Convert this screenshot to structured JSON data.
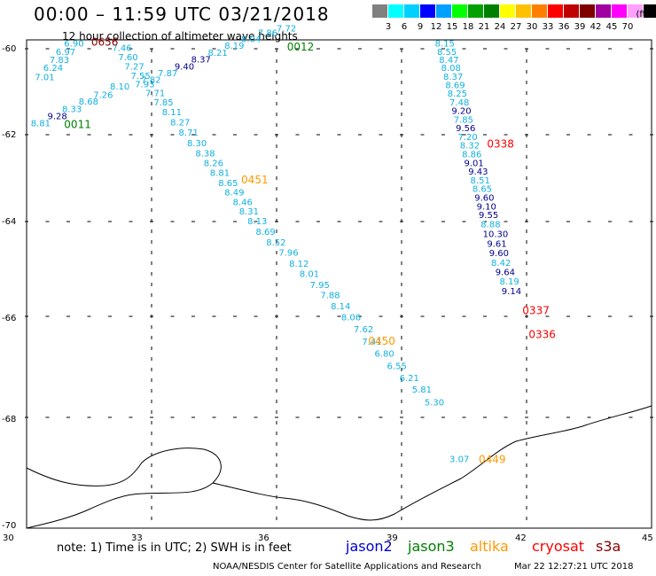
{
  "header": {
    "title": "00:00 – 11:59 UTC 03/21/2018",
    "subtitle": "12 hour collection of altimeter wave heights"
  },
  "legend": {
    "unit": "(ft)",
    "colors": [
      "#808080",
      "#00ffff",
      "#00d0ff",
      "#0000ff",
      "#00a0ff",
      "#00ff00",
      "#00a000",
      "#008000",
      "#ffff00",
      "#ffc000",
      "#ff8000",
      "#ff0000",
      "#c00000",
      "#800000",
      "#a000a0",
      "#ff00ff",
      "#ffa0ff",
      "#000000"
    ],
    "labels": [
      "3",
      "6",
      "9",
      "12",
      "15",
      "18",
      "21",
      "24",
      "27",
      "30",
      "33",
      "36",
      "39",
      "42",
      "45",
      "70"
    ]
  },
  "map": {
    "lat_ticks": [
      "-60",
      "-62",
      "-64",
      "-66",
      "-68",
      "-70"
    ],
    "lon_ticks": [
      "30",
      "33",
      "36",
      "39",
      "42",
      "45"
    ],
    "colors": {
      "cyan": "#10b0e0",
      "navy": "#00008b",
      "orange": "#ff9900",
      "green": "#008000",
      "red": "#ff0000",
      "maroon": "#8b0000"
    },
    "track_labels": [
      {
        "text": "0656",
        "color": "maroon",
        "lon": 31.55,
        "lat": -59.93
      },
      {
        "text": "0012",
        "color": "green",
        "lon": 36.25,
        "lat": -60.04
      },
      {
        "text": "0011",
        "color": "green",
        "lon": 30.9,
        "lat": -61.85
      },
      {
        "text": "0451",
        "color": "orange",
        "lon": 35.15,
        "lat": -63.12
      },
      {
        "text": "0338",
        "color": "red",
        "lon": 41.05,
        "lat": -62.3
      },
      {
        "text": "0450",
        "color": "orange",
        "lon": 38.2,
        "lat": -66.56
      },
      {
        "text": "0337",
        "color": "red",
        "lon": 41.9,
        "lat": -65.95
      },
      {
        "text": "0336",
        "color": "red",
        "lon": 42.05,
        "lat": -66.43
      },
      {
        "text": "0449",
        "color": "orange",
        "lon": 40.85,
        "lat": -68.86
      }
    ],
    "wave_values": [
      {
        "v": "6.90",
        "c": "cyan",
        "lon": 30.9,
        "lat": -59.95
      },
      {
        "v": "6.97",
        "c": "cyan",
        "lon": 30.7,
        "lat": -60.14
      },
      {
        "v": "7.83",
        "c": "cyan",
        "lon": 30.55,
        "lat": -60.33
      },
      {
        "v": "6.24",
        "c": "cyan",
        "lon": 30.4,
        "lat": -60.52
      },
      {
        "v": "7.01",
        "c": "cyan",
        "lon": 30.2,
        "lat": -60.73
      },
      {
        "v": "7.46",
        "c": "cyan",
        "lon": 32.05,
        "lat": -60.05
      },
      {
        "v": "7.60",
        "c": "cyan",
        "lon": 32.2,
        "lat": -60.27
      },
      {
        "v": "7.27",
        "c": "cyan",
        "lon": 32.35,
        "lat": -60.48
      },
      {
        "v": "7.55",
        "c": "cyan",
        "lon": 32.5,
        "lat": -60.7
      },
      {
        "v": "7.93",
        "c": "cyan",
        "lon": 32.6,
        "lat": -60.9
      },
      {
        "v": "7.71",
        "c": "cyan",
        "lon": 32.85,
        "lat": -61.1
      },
      {
        "v": "7.85",
        "c": "cyan",
        "lon": 33.05,
        "lat": -61.32
      },
      {
        "v": "8.11",
        "c": "cyan",
        "lon": 33.25,
        "lat": -61.55
      },
      {
        "v": "8.27",
        "c": "cyan",
        "lon": 33.45,
        "lat": -61.78
      },
      {
        "v": "8.71",
        "c": "cyan",
        "lon": 33.65,
        "lat": -62.02
      },
      {
        "v": "8.30",
        "c": "cyan",
        "lon": 33.85,
        "lat": -62.27
      },
      {
        "v": "8.38",
        "c": "cyan",
        "lon": 34.05,
        "lat": -62.5
      },
      {
        "v": "8.26",
        "c": "cyan",
        "lon": 34.25,
        "lat": -62.72
      },
      {
        "v": "8.81",
        "c": "cyan",
        "lon": 34.4,
        "lat": -62.95
      },
      {
        "v": "8.65",
        "c": "cyan",
        "lon": 34.6,
        "lat": -63.18
      },
      {
        "v": "8.49",
        "c": "cyan",
        "lon": 34.75,
        "lat": -63.4
      },
      {
        "v": "8.46",
        "c": "cyan",
        "lon": 34.95,
        "lat": -63.62
      },
      {
        "v": "8.31",
        "c": "cyan",
        "lon": 35.1,
        "lat": -63.84
      },
      {
        "v": "8.13",
        "c": "cyan",
        "lon": 35.3,
        "lat": -64.06
      },
      {
        "v": "8.69",
        "c": "cyan",
        "lon": 35.5,
        "lat": -64.28
      },
      {
        "v": "8.52",
        "c": "cyan",
        "lon": 35.75,
        "lat": -64.5
      },
      {
        "v": "7.96",
        "c": "cyan",
        "lon": 36.05,
        "lat": -64.72
      },
      {
        "v": "8.12",
        "c": "cyan",
        "lon": 36.3,
        "lat": -64.95
      },
      {
        "v": "8.01",
        "c": "cyan",
        "lon": 36.55,
        "lat": -65.17
      },
      {
        "v": "7.95",
        "c": "cyan",
        "lon": 36.8,
        "lat": -65.4
      },
      {
        "v": "7.88",
        "c": "cyan",
        "lon": 37.05,
        "lat": -65.62
      },
      {
        "v": "8.14",
        "c": "cyan",
        "lon": 37.3,
        "lat": -65.85
      },
      {
        "v": "8.06",
        "c": "cyan",
        "lon": 37.55,
        "lat": -66.08
      },
      {
        "v": "7.62",
        "c": "cyan",
        "lon": 37.85,
        "lat": -66.32
      },
      {
        "v": "7.41",
        "c": "cyan",
        "lon": 38.05,
        "lat": -66.56
      },
      {
        "v": "6.80",
        "c": "cyan",
        "lon": 38.35,
        "lat": -66.8
      },
      {
        "v": "6.55",
        "c": "cyan",
        "lon": 38.65,
        "lat": -67.04
      },
      {
        "v": "6.21",
        "c": "cyan",
        "lon": 38.95,
        "lat": -67.28
      },
      {
        "v": "5.81",
        "c": "cyan",
        "lon": 39.25,
        "lat": -67.51
      },
      {
        "v": "5.30",
        "c": "cyan",
        "lon": 39.55,
        "lat": -67.76
      },
      {
        "v": "3.07",
        "c": "cyan",
        "lon": 40.15,
        "lat": -68.84
      },
      {
        "v": "8.81",
        "c": "cyan",
        "lon": 30.1,
        "lat": -61.8
      },
      {
        "v": "9.28",
        "c": "navy",
        "lon": 30.5,
        "lat": -61.64
      },
      {
        "v": "8.33",
        "c": "cyan",
        "lon": 30.85,
        "lat": -61.47
      },
      {
        "v": "8.68",
        "c": "cyan",
        "lon": 31.25,
        "lat": -61.3
      },
      {
        "v": "7.26",
        "c": "cyan",
        "lon": 31.6,
        "lat": -61.14
      },
      {
        "v": "8.10",
        "c": "cyan",
        "lon": 32.0,
        "lat": -60.95
      },
      {
        "v": "7.82",
        "c": "cyan",
        "lon": 32.75,
        "lat": -60.79
      },
      {
        "v": "7.87",
        "c": "cyan",
        "lon": 33.15,
        "lat": -60.64
      },
      {
        "v": "9.40",
        "c": "navy",
        "lon": 33.55,
        "lat": -60.48
      },
      {
        "v": "8.37",
        "c": "navy",
        "lon": 33.95,
        "lat": -60.32
      },
      {
        "v": "8.21",
        "c": "cyan",
        "lon": 34.35,
        "lat": -60.16
      },
      {
        "v": "8.19",
        "c": "cyan",
        "lon": 34.75,
        "lat": -60.0
      },
      {
        "v": "8.04",
        "c": "cyan",
        "lon": 35.15,
        "lat": -59.84
      },
      {
        "v": "7.86",
        "c": "cyan",
        "lon": 35.55,
        "lat": -59.7
      },
      {
        "v": "7.72",
        "c": "cyan",
        "lon": 36.0,
        "lat": -59.59
      },
      {
        "v": "8.15",
        "c": "cyan",
        "lon": 39.8,
        "lat": -59.95
      },
      {
        "v": "8.55",
        "c": "cyan",
        "lon": 39.85,
        "lat": -60.14
      },
      {
        "v": "8.47",
        "c": "cyan",
        "lon": 39.9,
        "lat": -60.33
      },
      {
        "v": "8.08",
        "c": "cyan",
        "lon": 39.95,
        "lat": -60.52
      },
      {
        "v": "8.37",
        "c": "cyan",
        "lon": 40.0,
        "lat": -60.72
      },
      {
        "v": "8.69",
        "c": "cyan",
        "lon": 40.05,
        "lat": -60.92
      },
      {
        "v": "8.25",
        "c": "cyan",
        "lon": 40.1,
        "lat": -61.11
      },
      {
        "v": "7.48",
        "c": "cyan",
        "lon": 40.15,
        "lat": -61.32
      },
      {
        "v": "9.20",
        "c": "navy",
        "lon": 40.2,
        "lat": -61.52
      },
      {
        "v": "7.85",
        "c": "cyan",
        "lon": 40.25,
        "lat": -61.72
      },
      {
        "v": "9.56",
        "c": "navy",
        "lon": 40.3,
        "lat": -61.92
      },
      {
        "v": "7.20",
        "c": "cyan",
        "lon": 40.35,
        "lat": -62.12
      },
      {
        "v": "8.32",
        "c": "cyan",
        "lon": 40.4,
        "lat": -62.32
      },
      {
        "v": "8.86",
        "c": "cyan",
        "lon": 40.45,
        "lat": -62.52
      },
      {
        "v": "9.01",
        "c": "navy",
        "lon": 40.5,
        "lat": -62.72
      },
      {
        "v": "9.43",
        "c": "navy",
        "lon": 40.6,
        "lat": -62.92
      },
      {
        "v": "8.51",
        "c": "cyan",
        "lon": 40.65,
        "lat": -63.12
      },
      {
        "v": "8.65",
        "c": "cyan",
        "lon": 40.7,
        "lat": -63.32
      },
      {
        "v": "9.60",
        "c": "navy",
        "lon": 40.75,
        "lat": -63.52
      },
      {
        "v": "9.10",
        "c": "navy",
        "lon": 40.8,
        "lat": -63.72
      },
      {
        "v": "9.55",
        "c": "navy",
        "lon": 40.85,
        "lat": -63.92
      },
      {
        "v": "8.88",
        "c": "cyan",
        "lon": 40.9,
        "lat": -64.12
      },
      {
        "v": "10.30",
        "c": "navy",
        "lon": 40.95,
        "lat": -64.33
      },
      {
        "v": "9.61",
        "c": "navy",
        "lon": 41.05,
        "lat": -64.53
      },
      {
        "v": "9.60",
        "c": "navy",
        "lon": 41.1,
        "lat": -64.73
      },
      {
        "v": "8.42",
        "c": "cyan",
        "lon": 41.15,
        "lat": -64.93
      },
      {
        "v": "9.64",
        "c": "navy",
        "lon": 41.25,
        "lat": -65.13
      },
      {
        "v": "8.19",
        "c": "cyan",
        "lon": 41.35,
        "lat": -65.33
      },
      {
        "v": "9.14",
        "c": "navy",
        "lon": 41.4,
        "lat": -65.53
      }
    ]
  },
  "footer": {
    "note": "note: 1) Time is in UTC; 2) SWH is in feet",
    "satellites": [
      {
        "name": "jason2",
        "color": "#0000cc"
      },
      {
        "name": "jason3",
        "color": "#008000"
      },
      {
        "name": "altika",
        "color": "#ff9900"
      },
      {
        "name": "cryosat",
        "color": "#ff0000"
      },
      {
        "name": "s3a",
        "color": "#8b0000"
      }
    ],
    "credit": "NOAA/NESDIS Center for Satellite Applications and Research",
    "timestamp": "Mar 22 12:27:21 UTC 2018"
  }
}
